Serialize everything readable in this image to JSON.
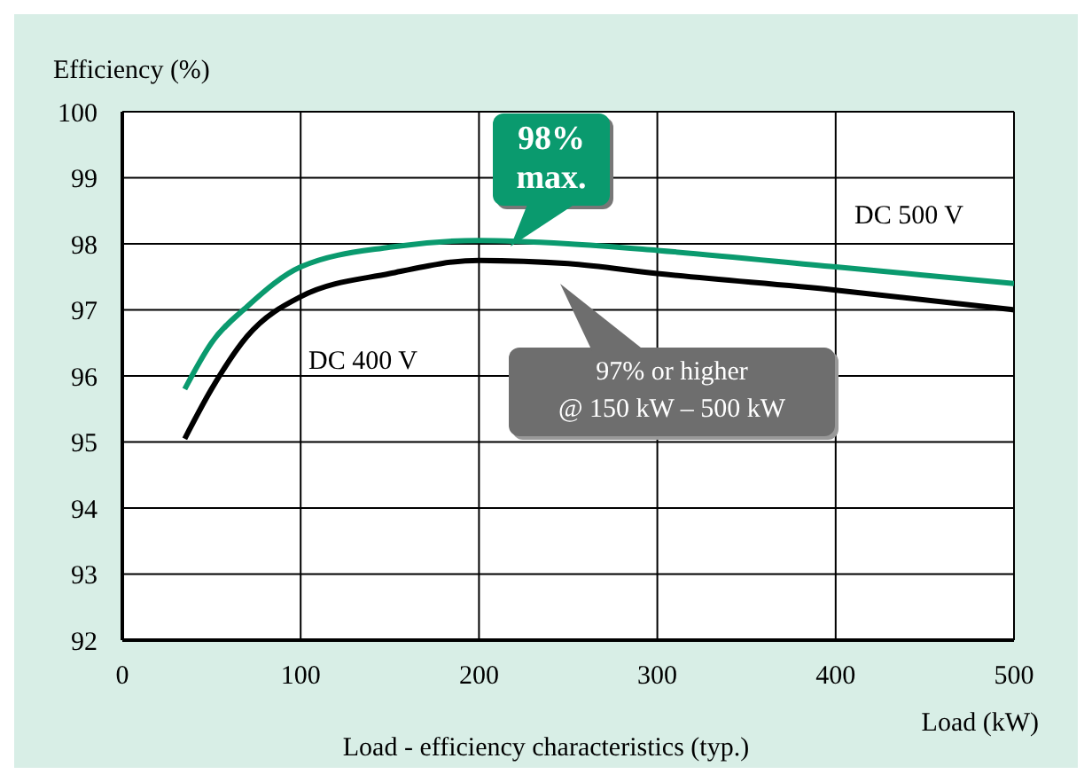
{
  "chart_data": {
    "type": "line",
    "xlabel": "Load (kW)",
    "ylabel": "Efficiency (%)",
    "xlim": [
      0,
      500
    ],
    "xticks": [
      0,
      100,
      200,
      300,
      400,
      500
    ],
    "ylim": [
      92,
      100
    ],
    "yticks": [
      92,
      93,
      94,
      95,
      96,
      97,
      98,
      99,
      100
    ],
    "grid": true,
    "legend": false,
    "marker": "none",
    "line_style": "solid",
    "x": [
      35,
      50,
      70,
      100,
      150,
      200,
      250,
      300,
      400,
      500
    ],
    "series": [
      {
        "name": "DC 500 V",
        "color": "#0a9a6e",
        "values": [
          95.8,
          96.5,
          97.05,
          97.65,
          97.95,
          98.05,
          98.0,
          97.9,
          97.65,
          97.4
        ]
      },
      {
        "name": "DC 400 V",
        "color": "#000000",
        "values": [
          95.05,
          95.8,
          96.6,
          97.2,
          97.55,
          97.75,
          97.7,
          97.55,
          97.3,
          97.0
        ]
      }
    ],
    "annotations": [
      "98%\nmax.",
      "97% or higher\n@ 150 kW – 500 kW",
      "Load - efficiency characteristics (typ.)"
    ]
  }
}
